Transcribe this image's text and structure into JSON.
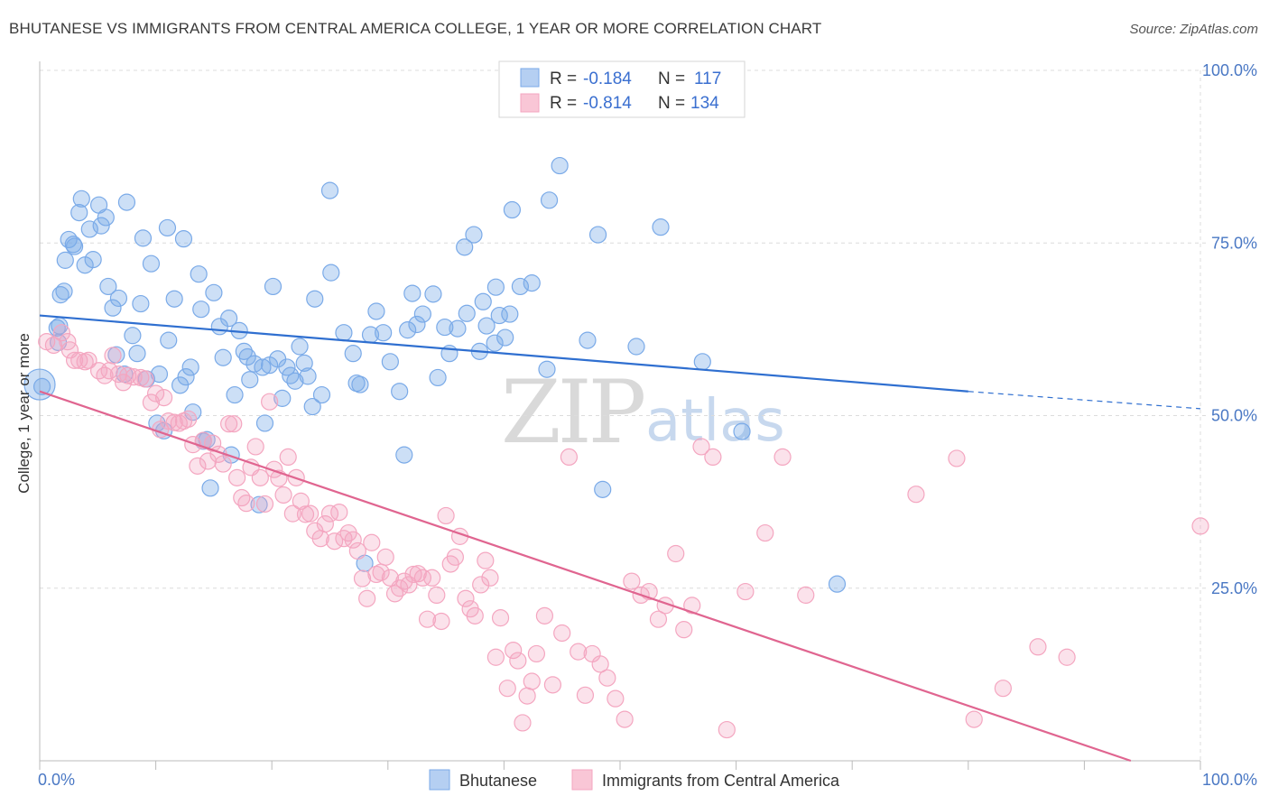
{
  "title": "BHUTANESE VS IMMIGRANTS FROM CENTRAL AMERICA COLLEGE, 1 YEAR OR MORE CORRELATION CHART",
  "source": "Source: ZipAtlas.com",
  "watermark": {
    "zip": "ZIP",
    "atlas": "atlas"
  },
  "colors": {
    "blue": "#7aaae8",
    "blue_line": "#2f6fd0",
    "pink": "#f4a6c0",
    "pink_line": "#e06590"
  },
  "legend": {
    "r_label": "R = ",
    "n_label": "N = ",
    "rows": [
      {
        "r": "-0.184",
        "n": "117"
      },
      {
        "r": "-0.814",
        "n": "134"
      }
    ]
  },
  "chart_data": {
    "type": "scatter",
    "ylabel": "College, 1 year or more",
    "xlim": [
      0,
      100
    ],
    "ylim": [
      0,
      100
    ],
    "x_tick_labels": [
      "0.0%",
      "100.0%"
    ],
    "y_tick_labels": [
      "100.0%",
      "75.0%",
      "50.0%",
      "25.0%"
    ],
    "y_ticks": [
      100,
      75,
      50,
      25
    ],
    "grid": true,
    "legend_position": "top-center",
    "series": [
      {
        "name": "Bhutanese",
        "trend": {
          "x": [
            0,
            80
          ],
          "y": [
            64.5,
            53.5
          ],
          "dashed_to": [
            100,
            51.0
          ]
        },
        "points": [
          [
            0.2,
            54.2
          ],
          [
            1.5,
            62.7
          ],
          [
            1.6,
            60.6
          ],
          [
            1.7,
            63.0
          ],
          [
            1.8,
            67.5
          ],
          [
            2.1,
            68.0
          ],
          [
            2.2,
            72.5
          ],
          [
            2.5,
            75.5
          ],
          [
            2.9,
            74.8
          ],
          [
            3.0,
            74.5
          ],
          [
            3.4,
            79.4
          ],
          [
            3.6,
            81.4
          ],
          [
            3.9,
            71.8
          ],
          [
            4.3,
            77.0
          ],
          [
            4.6,
            72.6
          ],
          [
            5.1,
            80.5
          ],
          [
            5.3,
            77.5
          ],
          [
            5.7,
            78.7
          ],
          [
            5.9,
            68.7
          ],
          [
            6.3,
            65.6
          ],
          [
            6.6,
            58.8
          ],
          [
            6.8,
            67.0
          ],
          [
            7.3,
            56.0
          ],
          [
            7.5,
            80.9
          ],
          [
            8.0,
            61.6
          ],
          [
            8.4,
            59.0
          ],
          [
            8.7,
            66.2
          ],
          [
            8.9,
            75.7
          ],
          [
            9.2,
            55.3
          ],
          [
            9.6,
            72.0
          ],
          [
            10.1,
            48.9
          ],
          [
            10.3,
            56.0
          ],
          [
            10.7,
            47.8
          ],
          [
            11.0,
            77.2
          ],
          [
            11.1,
            60.9
          ],
          [
            11.6,
            66.9
          ],
          [
            12.1,
            54.4
          ],
          [
            12.4,
            75.6
          ],
          [
            12.6,
            55.6
          ],
          [
            13.0,
            57.0
          ],
          [
            13.2,
            50.5
          ],
          [
            13.7,
            70.5
          ],
          [
            13.9,
            65.4
          ],
          [
            14.1,
            46.3
          ],
          [
            14.4,
            46.5
          ],
          [
            14.7,
            39.5
          ],
          [
            15.0,
            67.8
          ],
          [
            15.5,
            62.9
          ],
          [
            15.8,
            58.4
          ],
          [
            16.3,
            64.1
          ],
          [
            16.5,
            44.3
          ],
          [
            16.8,
            53.0
          ],
          [
            17.2,
            62.3
          ],
          [
            17.6,
            59.3
          ],
          [
            17.9,
            58.5
          ],
          [
            18.1,
            55.2
          ],
          [
            18.5,
            57.5
          ],
          [
            18.9,
            37.1
          ],
          [
            19.2,
            57.0
          ],
          [
            19.4,
            48.9
          ],
          [
            19.8,
            57.3
          ],
          [
            20.1,
            68.7
          ],
          [
            20.5,
            58.2
          ],
          [
            20.9,
            52.5
          ],
          [
            21.3,
            57.0
          ],
          [
            21.6,
            55.8
          ],
          [
            22.0,
            55.0
          ],
          [
            22.4,
            60.0
          ],
          [
            22.8,
            57.6
          ],
          [
            23.1,
            55.7
          ],
          [
            23.5,
            51.3
          ],
          [
            23.7,
            66.9
          ],
          [
            24.3,
            53.0
          ],
          [
            25.0,
            82.6
          ],
          [
            25.1,
            70.7
          ],
          [
            26.2,
            62.0
          ],
          [
            27.0,
            59.0
          ],
          [
            27.3,
            54.7
          ],
          [
            27.6,
            54.5
          ],
          [
            28.0,
            28.6
          ],
          [
            28.5,
            61.7
          ],
          [
            29.0,
            65.1
          ],
          [
            29.6,
            62.0
          ],
          [
            30.2,
            57.8
          ],
          [
            31.0,
            53.5
          ],
          [
            31.4,
            44.3
          ],
          [
            31.7,
            62.4
          ],
          [
            32.1,
            67.7
          ],
          [
            32.5,
            63.2
          ],
          [
            33.0,
            64.7
          ],
          [
            33.9,
            67.6
          ],
          [
            34.3,
            55.5
          ],
          [
            34.9,
            62.8
          ],
          [
            35.3,
            59.0
          ],
          [
            36.0,
            62.6
          ],
          [
            36.6,
            74.4
          ],
          [
            36.8,
            64.8
          ],
          [
            37.4,
            76.2
          ],
          [
            37.9,
            59.3
          ],
          [
            38.2,
            66.5
          ],
          [
            38.5,
            63.0
          ],
          [
            39.2,
            60.5
          ],
          [
            39.3,
            68.6
          ],
          [
            39.6,
            64.5
          ],
          [
            40.1,
            61.3
          ],
          [
            40.5,
            64.7
          ],
          [
            40.7,
            79.8
          ],
          [
            41.4,
            68.7
          ],
          [
            42.4,
            69.2
          ],
          [
            43.7,
            56.7
          ],
          [
            43.9,
            81.2
          ],
          [
            44.8,
            86.2
          ],
          [
            47.2,
            60.9
          ],
          [
            48.1,
            76.2
          ],
          [
            48.5,
            39.3
          ],
          [
            51.4,
            60.0
          ],
          [
            53.5,
            77.3
          ],
          [
            57.1,
            57.8
          ],
          [
            60.5,
            47.7
          ],
          [
            68.7,
            25.6
          ]
        ],
        "large_points": [
          [
            0.0,
            54.5
          ]
        ]
      },
      {
        "name": "Immigrants from Central America",
        "trend": {
          "x": [
            0,
            94
          ],
          "y": [
            53.5,
            0.0
          ]
        },
        "points": [
          [
            0.6,
            60.7
          ],
          [
            1.2,
            60.2
          ],
          [
            1.9,
            62.0
          ],
          [
            2.4,
            60.7
          ],
          [
            2.6,
            59.5
          ],
          [
            3.0,
            58.0
          ],
          [
            3.4,
            58.0
          ],
          [
            3.9,
            57.8
          ],
          [
            4.2,
            58.0
          ],
          [
            5.1,
            56.5
          ],
          [
            5.6,
            55.8
          ],
          [
            6.0,
            56.5
          ],
          [
            6.3,
            58.7
          ],
          [
            6.8,
            56.0
          ],
          [
            7.2,
            54.8
          ],
          [
            7.6,
            55.8
          ],
          [
            8.1,
            55.6
          ],
          [
            8.7,
            55.5
          ],
          [
            9.1,
            55.3
          ],
          [
            9.6,
            51.9
          ],
          [
            10.0,
            53.2
          ],
          [
            10.4,
            48.0
          ],
          [
            10.7,
            52.6
          ],
          [
            11.1,
            49.2
          ],
          [
            11.6,
            49.0
          ],
          [
            12.0,
            48.9
          ],
          [
            12.4,
            49.2
          ],
          [
            12.8,
            49.5
          ],
          [
            13.2,
            45.8
          ],
          [
            13.6,
            42.7
          ],
          [
            14.1,
            46.4
          ],
          [
            14.5,
            43.4
          ],
          [
            14.9,
            46.0
          ],
          [
            15.4,
            44.4
          ],
          [
            15.8,
            43.0
          ],
          [
            16.3,
            48.8
          ],
          [
            16.7,
            48.8
          ],
          [
            17.0,
            41.0
          ],
          [
            17.4,
            38.1
          ],
          [
            17.8,
            37.3
          ],
          [
            18.2,
            42.5
          ],
          [
            18.6,
            45.5
          ],
          [
            19.0,
            41.0
          ],
          [
            19.4,
            37.2
          ],
          [
            19.8,
            52.0
          ],
          [
            20.2,
            42.2
          ],
          [
            20.6,
            40.9
          ],
          [
            21.0,
            38.5
          ],
          [
            21.4,
            44.0
          ],
          [
            21.8,
            35.8
          ],
          [
            22.1,
            41.0
          ],
          [
            22.5,
            37.6
          ],
          [
            22.9,
            35.7
          ],
          [
            23.3,
            35.8
          ],
          [
            23.7,
            33.3
          ],
          [
            24.2,
            32.2
          ],
          [
            24.6,
            34.3
          ],
          [
            25.0,
            35.8
          ],
          [
            25.4,
            31.8
          ],
          [
            25.8,
            36.0
          ],
          [
            26.2,
            32.2
          ],
          [
            26.6,
            33.0
          ],
          [
            27.0,
            32.0
          ],
          [
            27.4,
            30.4
          ],
          [
            27.8,
            26.4
          ],
          [
            28.2,
            23.5
          ],
          [
            28.6,
            31.6
          ],
          [
            29.0,
            27.0
          ],
          [
            29.4,
            27.3
          ],
          [
            29.8,
            29.5
          ],
          [
            30.2,
            26.5
          ],
          [
            30.6,
            24.2
          ],
          [
            31.0,
            25.0
          ],
          [
            31.4,
            26.0
          ],
          [
            31.8,
            25.5
          ],
          [
            32.2,
            27.0
          ],
          [
            32.6,
            27.1
          ],
          [
            33.0,
            26.5
          ],
          [
            33.4,
            20.5
          ],
          [
            33.8,
            26.5
          ],
          [
            34.2,
            24.0
          ],
          [
            34.6,
            20.2
          ],
          [
            35.0,
            35.5
          ],
          [
            35.4,
            28.5
          ],
          [
            35.8,
            29.5
          ],
          [
            36.2,
            32.5
          ],
          [
            36.7,
            23.5
          ],
          [
            37.1,
            22.0
          ],
          [
            37.5,
            21.0
          ],
          [
            38.0,
            25.5
          ],
          [
            38.4,
            29.0
          ],
          [
            38.8,
            26.5
          ],
          [
            39.3,
            15.0
          ],
          [
            39.7,
            20.7
          ],
          [
            40.3,
            10.5
          ],
          [
            40.8,
            16.0
          ],
          [
            41.2,
            14.5
          ],
          [
            41.6,
            5.5
          ],
          [
            42.0,
            9.4
          ],
          [
            42.4,
            11.5
          ],
          [
            42.8,
            15.5
          ],
          [
            43.5,
            21.0
          ],
          [
            44.2,
            11.0
          ],
          [
            45.0,
            18.5
          ],
          [
            45.6,
            44.0
          ],
          [
            46.4,
            15.8
          ],
          [
            47.0,
            9.5
          ],
          [
            47.6,
            15.5
          ],
          [
            48.3,
            14.0
          ],
          [
            48.9,
            12.0
          ],
          [
            49.6,
            9.0
          ],
          [
            50.4,
            6.0
          ],
          [
            51.0,
            26.0
          ],
          [
            51.8,
            24.0
          ],
          [
            52.5,
            24.5
          ],
          [
            53.3,
            20.5
          ],
          [
            53.9,
            22.5
          ],
          [
            54.8,
            30.0
          ],
          [
            55.5,
            19.0
          ],
          [
            56.2,
            22.5
          ],
          [
            57.0,
            45.5
          ],
          [
            58.0,
            44.0
          ],
          [
            59.2,
            4.5
          ],
          [
            60.8,
            24.5
          ],
          [
            62.5,
            33.0
          ],
          [
            64.0,
            44.0
          ],
          [
            66.0,
            24.0
          ],
          [
            75.5,
            38.6
          ],
          [
            79.0,
            43.8
          ],
          [
            80.5,
            6.0
          ],
          [
            83.0,
            10.5
          ],
          [
            86.0,
            16.5
          ],
          [
            88.5,
            15.0
          ],
          [
            100.0,
            34.0
          ]
        ]
      }
    ]
  }
}
